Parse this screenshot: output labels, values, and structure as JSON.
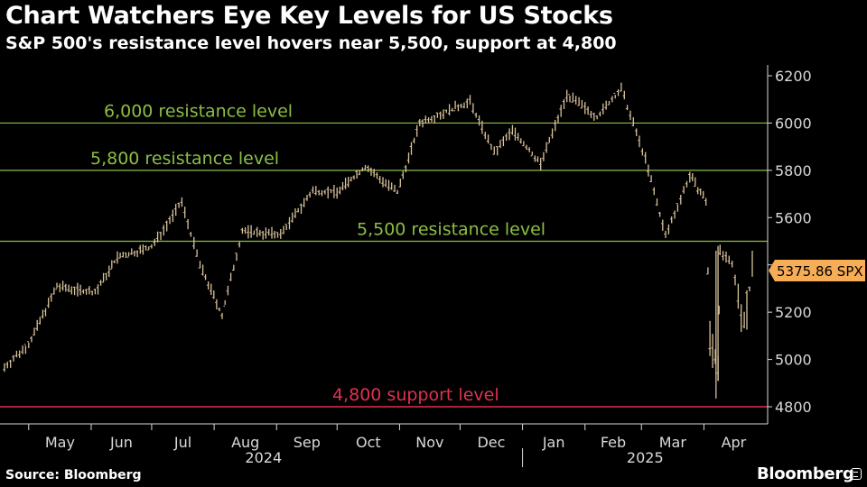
{
  "header": {
    "title": "Chart Watchers Eye Key Levels for US Stocks",
    "subtitle": "S&P 500's resistance level hovers near 5,500, support at 4,800"
  },
  "footer": {
    "source": "Source: Bloomberg",
    "brand": "Bloomberg"
  },
  "chart_data": {
    "type": "line",
    "series": [
      {
        "name": "SPX",
        "style": "daily high-low bars",
        "color": "#d8c29a",
        "x": [
          "2024-04-19",
          "2024-05-01",
          "2024-05-15",
          "2024-06-03",
          "2024-06-14",
          "2024-07-01",
          "2024-07-16",
          "2024-07-25",
          "2024-08-05",
          "2024-08-15",
          "2024-09-03",
          "2024-09-19",
          "2024-10-01",
          "2024-10-15",
          "2024-10-31",
          "2024-11-11",
          "2024-12-06",
          "2024-12-18",
          "2024-12-27",
          "2025-01-10",
          "2025-01-23",
          "2025-02-07",
          "2025-02-19",
          "2025-03-03",
          "2025-03-13",
          "2025-03-25",
          "2025-04-02",
          "2025-04-04",
          "2025-04-08",
          "2025-04-09",
          "2025-04-15",
          "2025-04-21",
          "2025-04-25"
        ],
        "y": [
          4967,
          5064,
          5308,
          5283,
          5431,
          5475,
          5667,
          5399,
          5186,
          5543,
          5528,
          5713,
          5708,
          5815,
          5705,
          6001,
          6090,
          5872,
          5970,
          5827,
          6118,
          6026,
          6144,
          5849,
          5522,
          5777,
          5671,
          5074,
          4982,
          5457,
          5396,
          5158,
          5375.86
        ]
      }
    ],
    "last_value_label": "5375.86 SPX",
    "reference_lines": [
      {
        "label": "6,000 resistance level",
        "value": 6000,
        "color": "#8cbe44"
      },
      {
        "label": "5,800 resistance level",
        "value": 5800,
        "color": "#8cbe44"
      },
      {
        "label": "5,500 resistance level",
        "value": 5500,
        "color": "#8cbe44"
      },
      {
        "label": "4,800 support level",
        "value": 4800,
        "color": "#e0314f"
      }
    ],
    "y_ticks": [
      4800,
      5000,
      5200,
      5400,
      5600,
      5800,
      6000,
      6200
    ],
    "ylim": [
      4800,
      6200
    ],
    "x_month_ticks": [
      "May",
      "Jun",
      "Jul",
      "Aug",
      "Sep",
      "Oct",
      "Nov",
      "Dec",
      "Jan",
      "Feb",
      "Mar",
      "Apr"
    ],
    "x_year_labels": [
      "2024",
      "2025"
    ],
    "grid": false,
    "axis_side": "right"
  }
}
